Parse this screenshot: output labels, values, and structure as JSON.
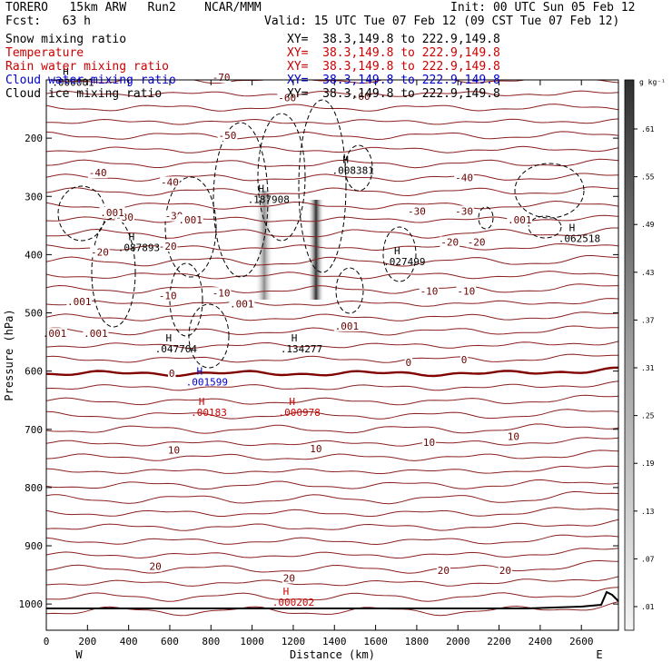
{
  "header": {
    "line1_left": "TORERO   15km ARW   Run2    NCAR/MMM",
    "line1_right": "Init: 00 UTC Sun 05 Feb 12",
    "line2_left": "Fcst:   63 h",
    "line2_right": "Valid: 15 UTC Tue 07 Feb 12 (09 CST Tue 07 Feb 12)"
  },
  "legend": [
    {
      "name": "Snow mixing ratio",
      "xy": "XY=  38.3,149.8 to 222.9,149.8",
      "color": "#000000"
    },
    {
      "name": "Temperature",
      "xy": "XY=  38.3,149.8 to 222.9,149.8",
      "color": "#cc0000"
    },
    {
      "name": "Rain water mixing ratio",
      "xy": "XY=  38.3,149.8 to 222.9,149.8",
      "color": "#cc0000"
    },
    {
      "name": "Cloud water mixing ratio",
      "xy": "XY=  38.3,149.8 to 222.9,149.8",
      "color": "#0000cc"
    },
    {
      "name": "Cloud ice mixing ratio",
      "xy": "XY=  38.3,149.8 to 222.9,149.8",
      "color": "#000000"
    }
  ],
  "chart_data": {
    "type": "contour-cross-section",
    "xlabel": "Distance (km)",
    "ylabel": "Pressure (hPa)",
    "xlim": [
      0,
      2780
    ],
    "ylim": [
      1045,
      100
    ],
    "x_ticks": [
      0,
      200,
      400,
      600,
      800,
      1000,
      1200,
      1400,
      1600,
      1800,
      2000,
      2200,
      2400,
      2600
    ],
    "y_ticks": [
      200,
      300,
      400,
      500,
      600,
      700,
      800,
      900,
      1000
    ],
    "endpoints": {
      "left": "W",
      "right": "E"
    },
    "colorbar": {
      "unit": "g kg⁻¹",
      "ticks": [
        ".01",
        ".07",
        ".13",
        ".19",
        ".25",
        ".31",
        ".37",
        ".43",
        ".49",
        ".55",
        ".61"
      ]
    },
    "temperature_labels": [
      {
        "text": "-70",
        "x": 850,
        "p": 100
      },
      {
        "text": "-60",
        "x": 1170,
        "p": 135
      },
      {
        "text": "-60",
        "x": 1530,
        "p": 133
      },
      {
        "text": "-50",
        "x": 880,
        "p": 200
      },
      {
        "text": "-40",
        "x": 250,
        "p": 264
      },
      {
        "text": "-40",
        "x": 600,
        "p": 280
      },
      {
        "text": "-40",
        "x": 2030,
        "p": 272
      },
      {
        "text": "-30",
        "x": 380,
        "p": 340
      },
      {
        "text": "-30",
        "x": 620,
        "p": 338
      },
      {
        "text": "-30",
        "x": 1800,
        "p": 330
      },
      {
        "text": "-30",
        "x": 2030,
        "p": 330
      },
      {
        "text": "-20",
        "x": 260,
        "p": 400
      },
      {
        "text": "-20",
        "x": 590,
        "p": 390
      },
      {
        "text": "-20",
        "x": 1960,
        "p": 383
      },
      {
        "text": "-20",
        "x": 2090,
        "p": 383
      },
      {
        "text": "-10",
        "x": 590,
        "p": 475
      },
      {
        "text": "-10",
        "x": 850,
        "p": 470
      },
      {
        "text": "-10",
        "x": 1860,
        "p": 467
      },
      {
        "text": "-10",
        "x": 2040,
        "p": 467
      },
      {
        "text": "0",
        "x": 610,
        "p": 608
      },
      {
        "text": "0",
        "x": 1760,
        "p": 590
      },
      {
        "text": "0",
        "x": 2030,
        "p": 585
      },
      {
        "text": "10",
        "x": 620,
        "p": 740
      },
      {
        "text": "10",
        "x": 1310,
        "p": 738
      },
      {
        "text": "10",
        "x": 1860,
        "p": 727
      },
      {
        "text": "10",
        "x": 2270,
        "p": 717
      },
      {
        "text": "20",
        "x": 530,
        "p": 940
      },
      {
        "text": "20",
        "x": 1180,
        "p": 960
      },
      {
        "text": "20",
        "x": 1930,
        "p": 947
      },
      {
        "text": "20",
        "x": 2230,
        "p": 947
      }
    ],
    "max_labels": [
      {
        "text": ".008381",
        "x": 1490,
        "p": 258,
        "color": "#000000"
      },
      {
        "text": ".187908",
        "x": 1080,
        "p": 308,
        "color": "#000000"
      },
      {
        "text": ".087893",
        "x": 450,
        "p": 391,
        "color": "#000000"
      },
      {
        "text": ".027499",
        "x": 1740,
        "p": 415,
        "color": "#000000"
      },
      {
        "text": ".062518",
        "x": 2590,
        "p": 375,
        "color": "#000000"
      },
      {
        "text": ".047704",
        "x": 630,
        "p": 565,
        "color": "#000000"
      },
      {
        "text": ".134277",
        "x": 1240,
        "p": 565,
        "color": "#000000"
      },
      {
        "text": ".000001",
        "x": 130,
        "p": 107,
        "color": "#000000"
      },
      {
        "text": ".00183",
        "x": 790,
        "p": 674,
        "color": "#cc0000"
      },
      {
        "text": ".000978",
        "x": 1230,
        "p": 674,
        "color": "#cc0000"
      },
      {
        "text": ".000202",
        "x": 1200,
        "p": 1000,
        "color": "#cc0000"
      },
      {
        "text": ".001599",
        "x": 780,
        "p": 622,
        "color": "#0000cc"
      }
    ],
    "cloud_labels": [
      {
        "text": ".001",
        "x": 320,
        "p": 332
      },
      {
        "text": ".001",
        "x": 160,
        "p": 485
      },
      {
        "text": ".001",
        "x": 40,
        "p": 540
      },
      {
        "text": ".001",
        "x": 240,
        "p": 540
      },
      {
        "text": ".001",
        "x": 950,
        "p": 489
      },
      {
        "text": ".001",
        "x": 1460,
        "p": 527
      },
      {
        "text": ".001",
        "x": 2300,
        "p": 345
      },
      {
        "text": ".001",
        "x": 700,
        "p": 345
      }
    ]
  }
}
